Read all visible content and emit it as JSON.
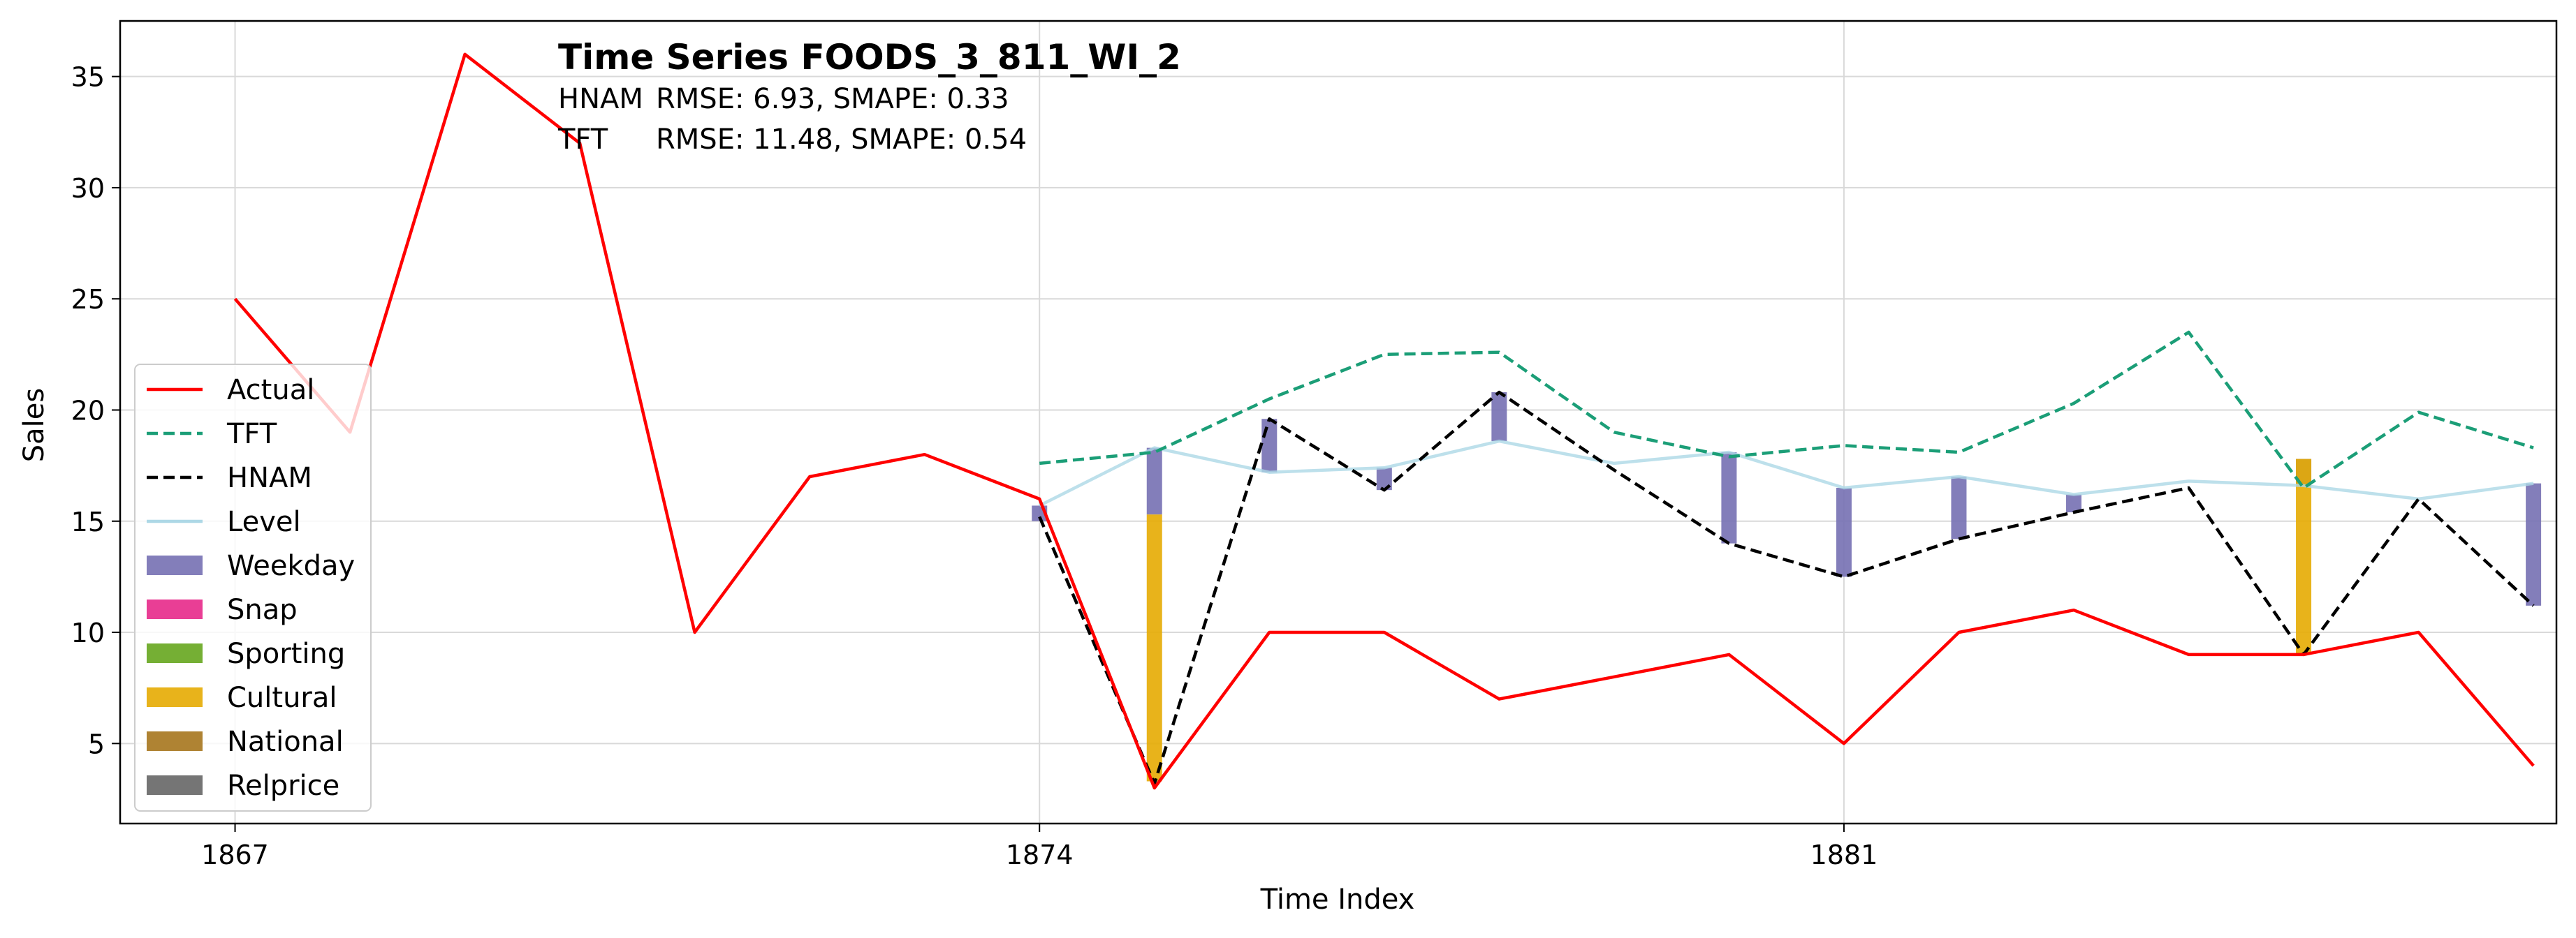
{
  "chart_data": {
    "type": "line",
    "title": "Time Series FOODS_3_811_WI_2",
    "metrics": [
      {
        "model": "HNAM",
        "text": "RMSE: 6.93,   SMAPE: 0.33"
      },
      {
        "model": "TFT",
        "text": "RMSE: 11.48,   SMAPE: 0.54"
      }
    ],
    "xlabel": "Time Index",
    "ylabel": "Sales",
    "xlim": [
      1866,
      1887.2
    ],
    "ylim": [
      1.4,
      37.5
    ],
    "x_ticks": [
      1867,
      1874,
      1881
    ],
    "y_ticks": [
      5,
      10,
      15,
      20,
      25,
      30,
      35
    ],
    "grid": true,
    "legend_position": "center-left",
    "series": [
      {
        "name": "Actual",
        "style": "solid",
        "color": "#ff0000",
        "x": [
          1867,
          1868,
          1869,
          1870,
          1871,
          1872,
          1873,
          1874,
          1875,
          1876,
          1877,
          1878,
          1879,
          1880,
          1881,
          1882,
          1883,
          1884,
          1885,
          1886,
          1887
        ],
        "values": [
          25,
          19,
          36,
          32,
          10,
          17,
          18,
          16,
          3,
          10,
          10,
          7,
          8,
          9,
          5,
          10,
          11,
          9,
          9,
          10,
          4
        ]
      },
      {
        "name": "TFT",
        "style": "dashed",
        "color": "#1b9e77",
        "x": [
          1874,
          1875,
          1876,
          1877,
          1878,
          1879,
          1880,
          1881,
          1882,
          1883,
          1884,
          1885,
          1886,
          1887
        ],
        "values": [
          17.6,
          18.1,
          20.5,
          22.5,
          22.6,
          19.0,
          17.9,
          18.4,
          18.1,
          20.3,
          23.5,
          16.5,
          19.9,
          18.3
        ]
      },
      {
        "name": "HNAM",
        "style": "dashed",
        "color": "#000000",
        "x": [
          1874,
          1875,
          1876,
          1877,
          1878,
          1879,
          1880,
          1881,
          1882,
          1883,
          1884,
          1885,
          1886,
          1887
        ],
        "values": [
          15.2,
          3.2,
          19.6,
          16.4,
          20.8,
          17.3,
          14.0,
          12.5,
          14.2,
          15.4,
          16.5,
          9.0,
          16.0,
          11.2
        ]
      },
      {
        "name": "Level",
        "style": "solid",
        "color": "#add8e6",
        "x": [
          1874,
          1875,
          1876,
          1877,
          1878,
          1879,
          1880,
          1881,
          1882,
          1883,
          1884,
          1885,
          1886,
          1887
        ],
        "values": [
          15.7,
          18.3,
          17.2,
          17.4,
          18.6,
          17.6,
          18.1,
          16.5,
          17.0,
          16.2,
          16.8,
          16.6,
          16.0,
          16.7
        ]
      }
    ],
    "components": [
      {
        "name": "Weekday",
        "color": "#7570b3"
      },
      {
        "name": "Snap",
        "color": "#e7298a"
      },
      {
        "name": "Sporting",
        "color": "#66a61e"
      },
      {
        "name": "Cultural",
        "color": "#e6ab02"
      },
      {
        "name": "National",
        "color": "#a6761d"
      },
      {
        "name": "Relprice",
        "color": "#666666"
      }
    ],
    "component_bars": [
      {
        "x": 1874,
        "component": "Weekday",
        "from": 15.7,
        "to": 15.0
      },
      {
        "x": 1875,
        "component": "Weekday",
        "from": 18.3,
        "to": 15.3
      },
      {
        "x": 1875,
        "component": "Cultural",
        "from": 15.3,
        "to": 3.3
      },
      {
        "x": 1876,
        "component": "Weekday",
        "from": 17.2,
        "to": 19.6
      },
      {
        "x": 1877,
        "component": "Weekday",
        "from": 17.4,
        "to": 16.4
      },
      {
        "x": 1878,
        "component": "Weekday",
        "from": 18.6,
        "to": 20.8
      },
      {
        "x": 1880,
        "component": "Weekday",
        "from": 18.1,
        "to": 14.0
      },
      {
        "x": 1881,
        "component": "Weekday",
        "from": 16.5,
        "to": 12.5
      },
      {
        "x": 1882,
        "component": "Weekday",
        "from": 17.0,
        "to": 14.2
      },
      {
        "x": 1883,
        "component": "Weekday",
        "from": 16.2,
        "to": 15.4
      },
      {
        "x": 1885,
        "component": "Weekday",
        "from": 16.6,
        "to": 17.8
      },
      {
        "x": 1885,
        "component": "Cultural",
        "from": 17.8,
        "to": 9.0
      },
      {
        "x": 1887,
        "component": "Weekday",
        "from": 16.7,
        "to": 11.2
      }
    ]
  }
}
